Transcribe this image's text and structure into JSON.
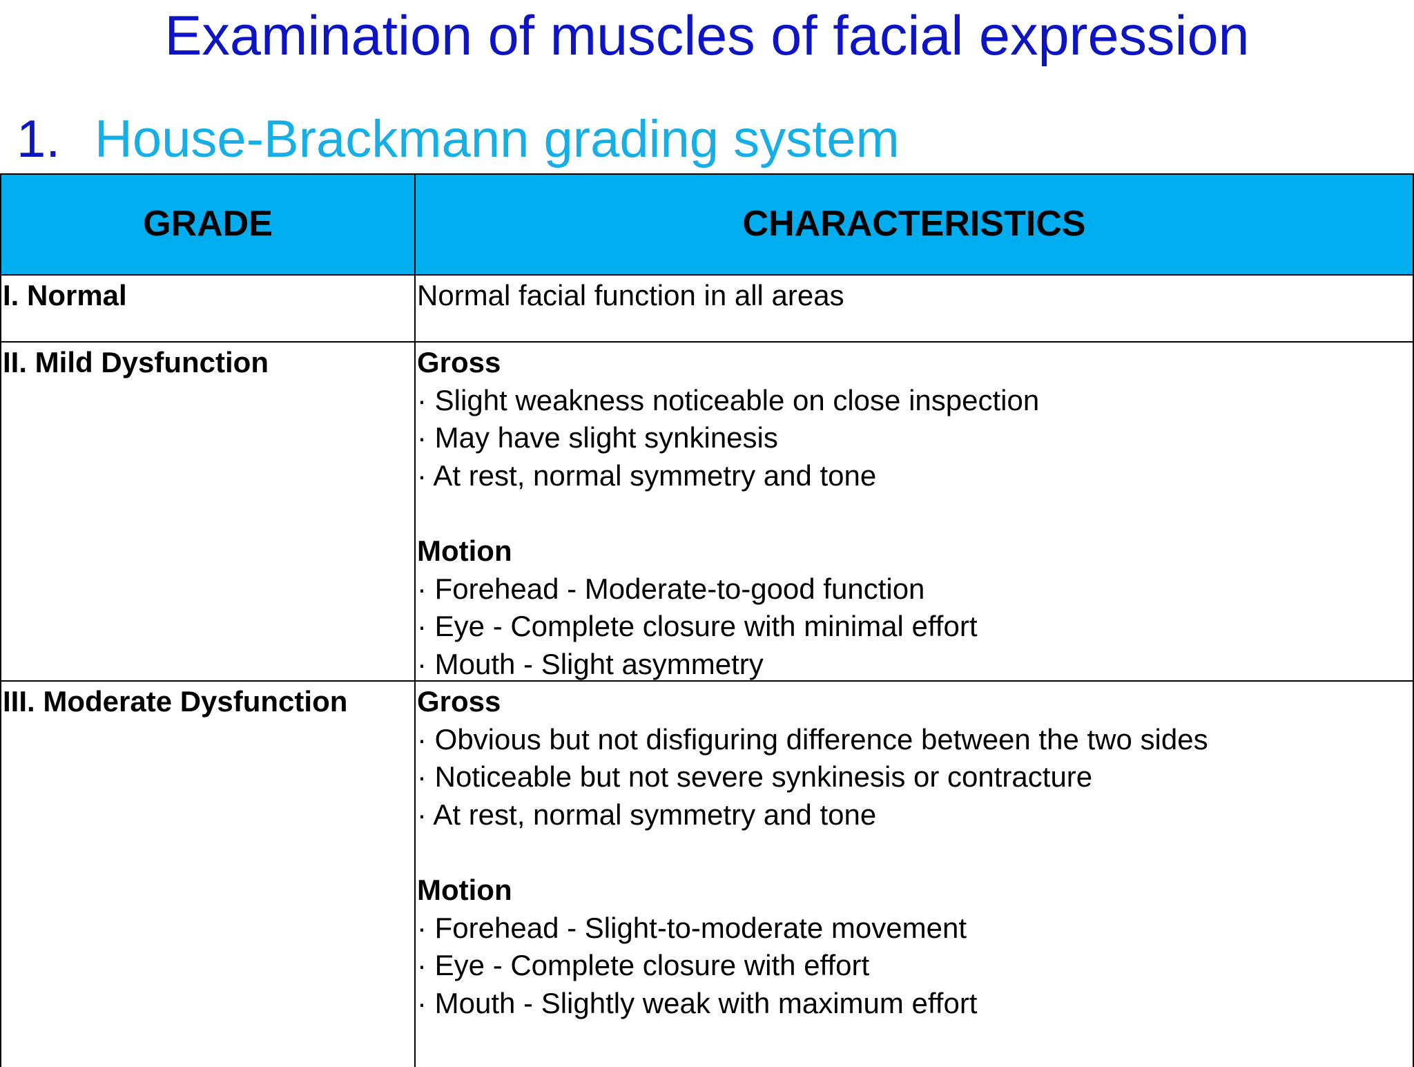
{
  "header": {
    "title": "Examination of muscles of facial expression",
    "number": "1.",
    "subtitle": "House-Brackmann grading system"
  },
  "table": {
    "columns": [
      "GRADE",
      "CHARACTERISTICS"
    ],
    "rows": [
      {
        "grade": "I. Normal",
        "sections": [
          {
            "text": "Normal facial function in all areas"
          }
        ]
      },
      {
        "grade": "II. Mild Dysfunction",
        "sections": [
          {
            "heading": "Gross",
            "items": [
              "· Slight weakness noticeable on close inspection",
              "· May have slight synkinesis",
              "· At rest, normal symmetry and tone"
            ]
          },
          {
            "heading": "Motion",
            "items": [
              "· Forehead - Moderate-to-good function",
              "· Eye - Complete closure with minimal effort",
              "· Mouth - Slight asymmetry"
            ]
          }
        ]
      },
      {
        "grade": "III. Moderate Dysfunction",
        "sections": [
          {
            "heading": "Gross",
            "items": [
              "· Obvious but not disfiguring difference between the two sides",
              "· Noticeable but not severe synkinesis or contracture",
              "· At rest, normal symmetry and tone"
            ]
          },
          {
            "heading": "Motion",
            "items": [
              "· Forehead - Slight-to-moderate movement",
              "· Eye - Complete closure with effort",
              "· Mouth - Slightly weak with maximum effort"
            ]
          }
        ]
      }
    ]
  }
}
